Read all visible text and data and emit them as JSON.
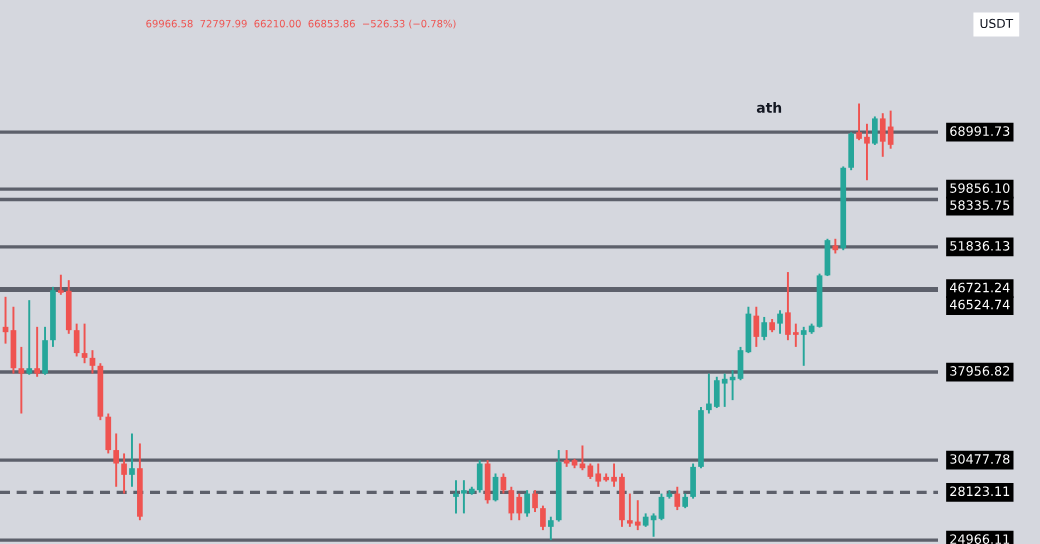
{
  "chart_data": {
    "type": "candlestick",
    "categories": [
      null,
      null,
      null,
      null,
      null,
      null,
      null,
      null,
      null,
      null,
      null,
      null,
      null,
      null,
      null,
      null,
      null,
      null,
      null,
      null,
      null,
      null,
      null,
      null,
      null,
      null,
      null,
      null,
      null,
      null,
      null,
      null,
      null,
      null,
      null,
      null,
      null,
      null,
      null,
      null,
      null,
      null,
      null,
      null,
      null,
      null,
      null,
      null,
      null,
      null,
      null,
      null,
      null,
      null,
      null,
      null,
      null,
      null,
      null,
      null,
      null,
      null,
      null,
      null,
      null,
      null,
      null,
      null,
      null,
      null,
      null,
      null,
      null,
      null,
      null,
      null,
      null,
      null,
      null,
      null,
      null,
      null,
      null,
      null,
      null,
      null,
      null,
      null,
      null,
      null,
      null,
      null,
      null,
      null,
      null,
      null,
      null,
      null,
      null,
      null,
      null,
      null,
      null,
      null,
      null,
      null,
      null,
      null,
      null,
      null,
      null,
      null,
      null
    ],
    "ohlc": [
      [
        42480,
        45780,
        40740,
        41920
      ],
      [
        42130,
        44660,
        37810,
        38320
      ],
      [
        38320,
        40410,
        34230,
        37810
      ],
      [
        37810,
        45400,
        37700,
        38320
      ],
      [
        38320,
        42480,
        37510,
        37810
      ],
      [
        37810,
        42480,
        37700,
        41090
      ],
      [
        41090,
        46930,
        40410,
        46540
      ],
      [
        46540,
        48370,
        46010,
        46240
      ],
      [
        46470,
        47720,
        41750,
        42130
      ],
      [
        42130,
        42820,
        39460,
        39790
      ],
      [
        39790,
        42820,
        38800,
        39320
      ],
      [
        39320,
        40080,
        37810,
        38550
      ],
      [
        38550,
        38800,
        33670,
        33960
      ],
      [
        33960,
        34230,
        30990,
        31250
      ],
      [
        31250,
        32570,
        28520,
        30220
      ],
      [
        30220,
        30990,
        28040,
        29380
      ],
      [
        29380,
        32570,
        28520,
        29870
      ],
      [
        29870,
        31770,
        26240,
        26470
      ],
      null,
      null,
      null,
      null,
      null,
      null,
      null,
      null,
      null,
      null,
      null,
      null,
      null,
      null,
      null,
      null,
      null,
      null,
      null,
      null,
      null,
      null,
      null,
      null,
      null,
      null,
      null,
      null,
      null,
      null,
      null,
      null,
      null,
      null,
      null,
      null,
      null,
      null,
      null,
      [
        27810,
        28990,
        26690,
        28040
      ],
      [
        28040,
        28990,
        26690,
        28280
      ],
      [
        28040,
        28520,
        27960,
        28380
      ],
      [
        28280,
        30480,
        28110,
        30220
      ],
      [
        30220,
        30480,
        27350,
        27580
      ],
      [
        27580,
        29480,
        27500,
        29230
      ],
      [
        29230,
        29480,
        28040,
        28280
      ],
      [
        28280,
        28520,
        26240,
        26690
      ],
      [
        27810,
        28040,
        26240,
        26690
      ],
      [
        26690,
        28280,
        26470,
        28040
      ],
      [
        28040,
        28280,
        26780,
        27040
      ],
      [
        27040,
        27210,
        25600,
        25810
      ],
      [
        25810,
        26470,
        24970,
        26240
      ],
      [
        26240,
        31250,
        26150,
        30330
      ],
      [
        30480,
        31250,
        29970,
        30220
      ],
      [
        30480,
        30580,
        29870,
        30070
      ],
      [
        30220,
        31610,
        29720,
        29870
      ],
      [
        30070,
        30220,
        29080,
        29230
      ],
      [
        29480,
        30220,
        28520,
        28890
      ],
      [
        29230,
        29480,
        28890,
        28990
      ],
      [
        29230,
        30220,
        28520,
        28890
      ],
      [
        29230,
        29480,
        25810,
        26240
      ],
      [
        26240,
        28040,
        25810,
        26020
      ],
      [
        26150,
        27580,
        25600,
        25890
      ],
      [
        25890,
        26690,
        25810,
        26470
      ],
      [
        26240,
        26690,
        25180,
        26550
      ],
      [
        26330,
        28040,
        26240,
        27810
      ],
      [
        27810,
        28280,
        27690,
        28040
      ],
      [
        28040,
        28520,
        26910,
        27130
      ],
      [
        27130,
        28040,
        27040,
        27810
      ],
      [
        27810,
        30220,
        27690,
        29970
      ],
      [
        29970,
        34800,
        29870,
        34520
      ],
      [
        34520,
        37810,
        34230,
        35090
      ],
      [
        34800,
        37510,
        34700,
        37190
      ],
      [
        36880,
        37810,
        34800,
        37320
      ],
      [
        37190,
        38130,
        35390,
        37510
      ],
      [
        37320,
        40410,
        37190,
        40080
      ],
      [
        39880,
        44660,
        39790,
        43900
      ],
      [
        43680,
        44660,
        40410,
        41430
      ],
      [
        41430,
        43540,
        41090,
        42970
      ],
      [
        42970,
        43320,
        41920,
        42130
      ],
      [
        42820,
        44280,
        41750,
        43900
      ],
      [
        44040,
        48690,
        41090,
        41640
      ],
      [
        41920,
        42820,
        40410,
        41640
      ],
      [
        41640,
        42480,
        38550,
        42130
      ],
      [
        41920,
        42820,
        41750,
        42610
      ],
      [
        42480,
        48500,
        42400,
        48290
      ],
      [
        48290,
        52900,
        48210,
        52720
      ],
      [
        52020,
        52900,
        51000,
        51420
      ],
      [
        51680,
        63350,
        51420,
        63140
      ],
      [
        63140,
        68990,
        62760,
        68750
      ],
      [
        68990,
        74100,
        67630,
        67860
      ],
      [
        68200,
        70450,
        61210,
        67060
      ],
      [
        67060,
        71750,
        66830,
        71400
      ],
      [
        71400,
        72330,
        64890,
        67380.19
      ],
      [
        69966.58,
        72797.99,
        66210.0,
        66853.86
      ]
    ],
    "colors": [
      "#ef5350",
      "#ef5350",
      "#ef5350",
      "#26a69a",
      "#ef5350",
      "#26a69a",
      "#26a69a",
      "#ef5350",
      "#ef5350",
      "#ef5350",
      "#ef5350",
      "#ef5350",
      "#ef5350",
      "#ef5350",
      "#ef5350",
      "#ef5350",
      "#26a69a",
      "#ef5350",
      null,
      null,
      null,
      null,
      null,
      null,
      null,
      null,
      null,
      null,
      null,
      null,
      null,
      null,
      null,
      null,
      null,
      null,
      null,
      null,
      null,
      null,
      null,
      null,
      null,
      null,
      null,
      null,
      null,
      null,
      null,
      null,
      null,
      null,
      null,
      null,
      null,
      null,
      null,
      "#26a69a",
      "#26a69a",
      "#26a69a",
      "#26a69a",
      "#ef5350",
      "#26a69a",
      "#ef5350",
      "#ef5350",
      "#ef5350",
      "#26a69a",
      "#ef5350",
      "#ef5350",
      "#26a69a",
      "#26a69a",
      "#ef5350",
      "#ef5350",
      "#ef5350",
      "#ef5350",
      "#ef5350",
      "#ef5350",
      "#ef5350",
      "#ef5350",
      "#ef5350",
      "#ef5350",
      "#26a69a",
      "#26a69a",
      "#26a69a",
      "#26a69a",
      "#ef5350",
      "#26a69a",
      "#26a69a",
      "#26a69a",
      "#26a69a",
      "#26a69a",
      "#26a69a",
      "#26a69a",
      "#26a69a",
      "#26a69a",
      "#ef5350",
      "#26a69a",
      "#ef5350",
      "#26a69a",
      "#ef5350",
      "#ef5350",
      "#26a69a",
      "#26a69a",
      "#26a69a",
      "#26a69a",
      "#ef5350",
      "#26a69a",
      "#26a69a",
      "#ef5350",
      "#ef5350",
      "#26a69a",
      "#ef5350",
      "#ef5350"
    ],
    "log": true,
    "ylim": [
      24730,
      95900
    ],
    "grid": false,
    "legend": false,
    "ref_lines": [
      {
        "axis": "y",
        "value": 68991.73,
        "label": "68991.73",
        "color": "#5d606b",
        "line_style": "solid"
      },
      {
        "axis": "y",
        "value": 59856.1,
        "label": "59856.10",
        "color": "#5d606b",
        "line_style": "solid"
      },
      {
        "axis": "y",
        "value": 58335.75,
        "label": "58335.75",
        "color": "#5d606b",
        "line_style": "solid"
      },
      {
        "axis": "y",
        "value": 51836.13,
        "label": "51836.13",
        "color": "#5d606b",
        "line_style": "solid"
      },
      {
        "axis": "y",
        "value": 46721.24,
        "label": "46721.24",
        "color": "#5d606b",
        "line_style": "solid"
      },
      {
        "axis": "y",
        "value": 46524.74,
        "label": "46524.74",
        "color": "#5d606b",
        "line_style": "solid"
      },
      {
        "axis": "y",
        "value": 37956.82,
        "label": "37956.82",
        "color": "#5d606b",
        "line_style": "solid"
      },
      {
        "axis": "y",
        "value": 30477.78,
        "label": "30477.78",
        "color": "#5d606b",
        "line_style": "solid"
      },
      {
        "axis": "y",
        "value": 28123.11,
        "label": "28123.11",
        "color": "#5d606b",
        "line_style": "dashed"
      },
      {
        "axis": "y",
        "value": 24966.11,
        "label": "24966.11",
        "color": "#5d606b",
        "line_style": "solid"
      }
    ],
    "annotations": [
      "69966.58  72797.99  66210.00  66853.86  −526.33 (−0.78%)",
      "USDT",
      "ath"
    ]
  }
}
